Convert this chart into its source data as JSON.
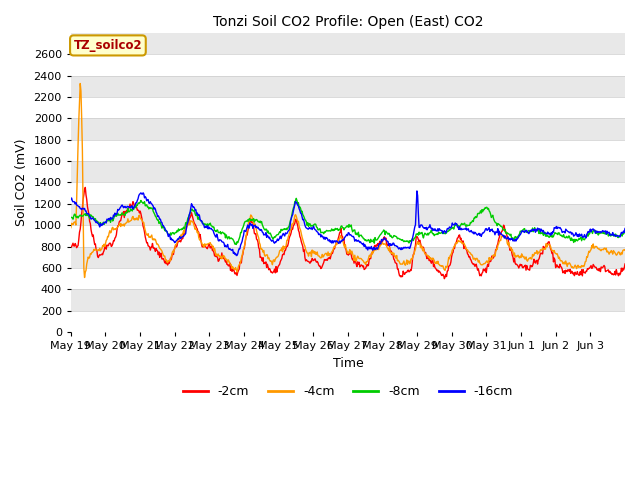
{
  "title": "Tonzi Soil CO2 Profile: Open (East) CO2",
  "xlabel": "Time",
  "ylabel": "Soil CO2 (mV)",
  "ylim": [
    0,
    2800
  ],
  "yticks": [
    0,
    200,
    400,
    600,
    800,
    1000,
    1200,
    1400,
    1600,
    1800,
    2000,
    2200,
    2400,
    2600
  ],
  "legend_label": "TZ_soilco2",
  "series_labels": [
    "-2cm",
    "-4cm",
    "-8cm",
    "-16cm"
  ],
  "series_colors": [
    "#ff0000",
    "#ff9900",
    "#00cc00",
    "#0000ff"
  ],
  "fig_bg": "#ffffff",
  "plot_bg": "#e8e8e8",
  "grid_color": "#ffffff",
  "n_days": 16,
  "points_per_day": 48,
  "tick_labels": [
    "May 19",
    "May 20",
    "May 21",
    "May 22",
    "May 23",
    "May 24",
    "May 25",
    "May 26",
    "May 27",
    "May 28",
    "May 29",
    "May 30",
    "May 31",
    "Jun 1",
    "Jun 2",
    "Jun 3"
  ]
}
